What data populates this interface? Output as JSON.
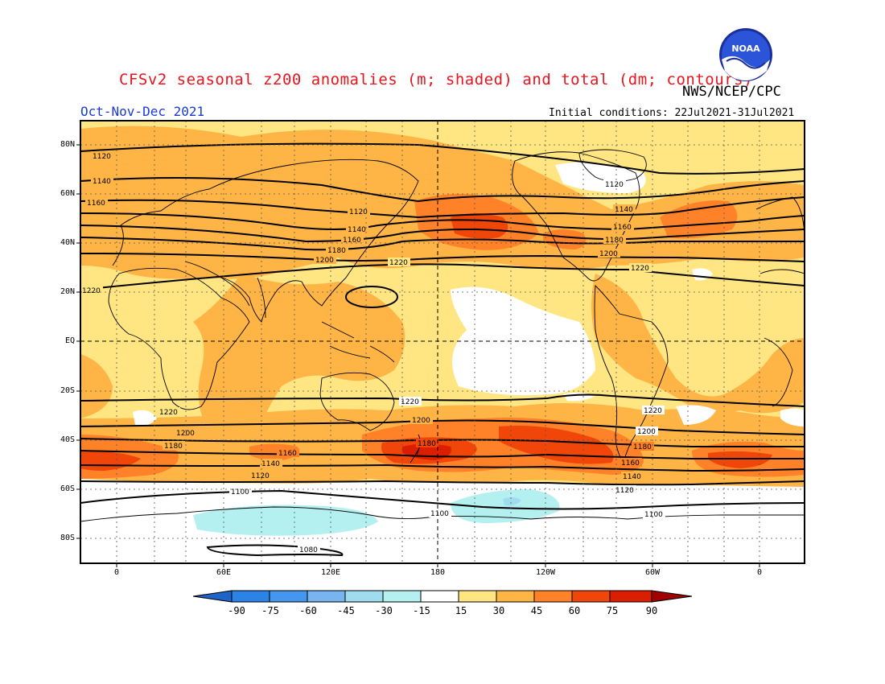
{
  "header": {
    "title": "CFSv2 seasonal z200 anomalies (m; shaded) and total (dm; contours)",
    "agency": "NWS/NCEP/CPC",
    "period": "Oct-Nov-Dec 2021",
    "initial_conditions": "Initial conditions: 22Jul2021-31Jul2021",
    "logo_text": "NOAA"
  },
  "axes": {
    "lat_labels": [
      "80N",
      "60N",
      "40N",
      "20N",
      "EQ",
      "20S",
      "40S",
      "60S",
      "80S"
    ],
    "lon_labels": [
      "0",
      "60E",
      "120E",
      "180",
      "120W",
      "60W",
      "0"
    ]
  },
  "colorbar": {
    "labels": [
      "-90",
      "-75",
      "-60",
      "-45",
      "-30",
      "-15",
      "15",
      "30",
      "45",
      "60",
      "75",
      "90"
    ],
    "colors": [
      "#1e64c8",
      "#2d82e6",
      "#4696f0",
      "#78b4f0",
      "#a0dcf0",
      "#b4f0f0",
      "#ffffff",
      "#ffe682",
      "#ffb446",
      "#ff8228",
      "#f0460a",
      "#dc1e00",
      "#a00000"
    ]
  },
  "contour_labels": [
    "1080",
    "1100",
    "1120",
    "1140",
    "1160",
    "1180",
    "1200",
    "1220"
  ]
}
